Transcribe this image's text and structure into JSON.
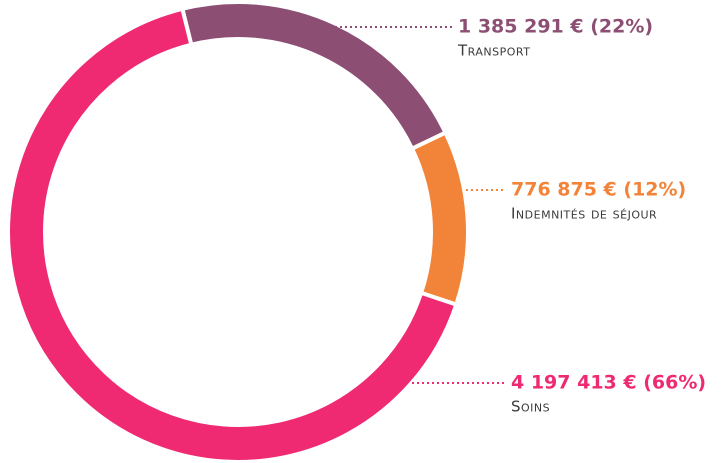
{
  "chart_data": {
    "type": "donut",
    "categories": [
      "Transport",
      "Indemnités de séjour",
      "Soins"
    ],
    "values": [
      1385291,
      776875,
      4197413
    ],
    "value_labels": [
      "1 385 291 € (22%)",
      "776 875 € (12%)",
      "4 197 413 € (66%)"
    ],
    "colors": [
      "#8c4f73",
      "#f2843a",
      "#ef2a72"
    ]
  }
}
